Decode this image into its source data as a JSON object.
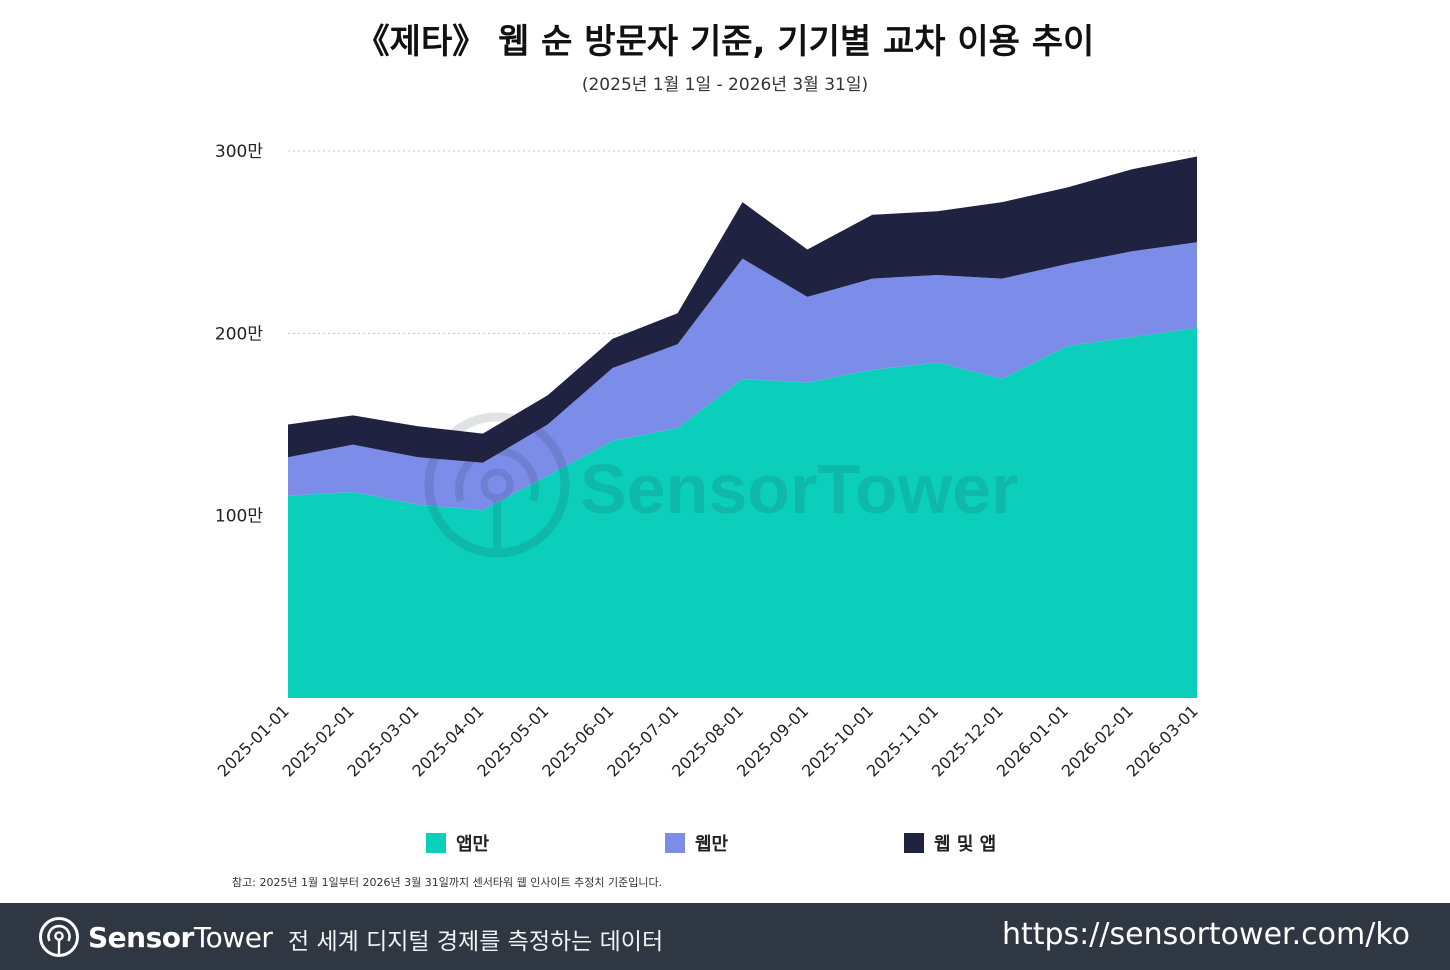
{
  "header": {
    "title": "《제타》 웹 순 방문자 기준, 기기별 교차 이용 추이",
    "subtitle": "(2025년 1월 1일 - 2026년 3월 31일)"
  },
  "watermark": {
    "text": "SensorTower",
    "icon": "sensortower-logo-icon"
  },
  "chart_data": {
    "type": "area",
    "stacked": true,
    "categories": [
      "2025-01-01",
      "2025-02-01",
      "2025-03-01",
      "2025-04-01",
      "2025-05-01",
      "2025-06-01",
      "2025-07-01",
      "2025-08-01",
      "2025-09-01",
      "2025-10-01",
      "2025-11-01",
      "2025-12-01",
      "2026-01-01",
      "2026-02-01",
      "2026-03-01"
    ],
    "series": [
      {
        "name": "앱만",
        "color": "#0ccfbb",
        "values": [
          111,
          113,
          106,
          103,
          122,
          141,
          148,
          175,
          173,
          180,
          184,
          175,
          193,
          198,
          203
        ]
      },
      {
        "name": "웹만",
        "color": "#7b8ce9",
        "values": [
          21,
          26,
          26,
          26,
          28,
          40,
          46,
          66,
          47,
          50,
          48,
          55,
          45,
          47,
          47
        ]
      },
      {
        "name": "웹 및 앱",
        "color": "#1f2240",
        "values": [
          18,
          16,
          17,
          16,
          16,
          16,
          17,
          31,
          26,
          35,
          35,
          42,
          42,
          45,
          47
        ]
      }
    ],
    "y_ticks": [
      {
        "value": 100,
        "label": "100만"
      },
      {
        "value": 200,
        "label": "200만"
      },
      {
        "value": 300,
        "label": "300만"
      }
    ],
    "ylim": [
      0,
      300
    ],
    "grid": true,
    "legend_position": "bottom"
  },
  "note": "참고: 2025년 1월 1일부터 2026년 3월 31일까지 센서타워 웹 인사이트 추정치 기준입니다.",
  "footer": {
    "brand_bold": "Sensor",
    "brand_regular": "Tower",
    "brand_icon": "sensortower-logo-icon",
    "tagline": "전 세계 디지털 경제를 측정하는 데이터",
    "url": "https://sensortower.com/ko"
  }
}
